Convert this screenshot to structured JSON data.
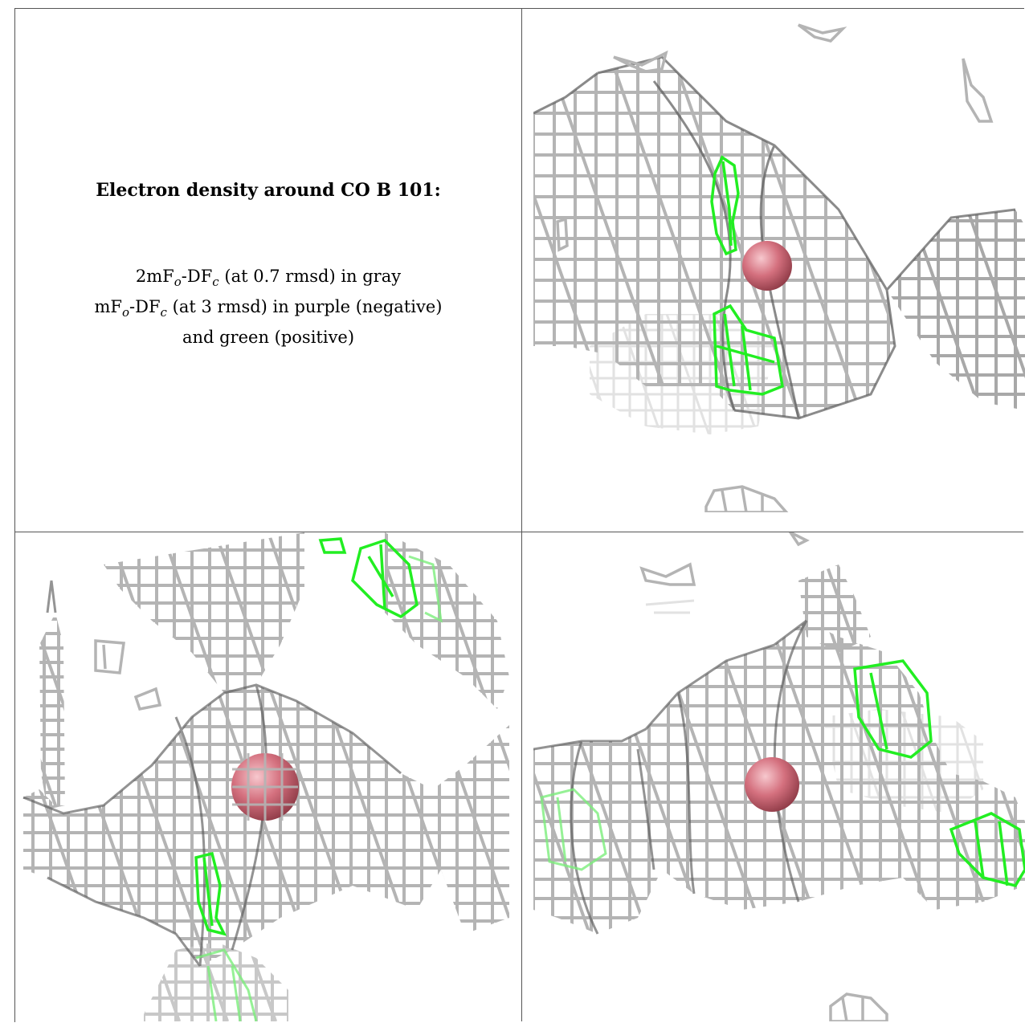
{
  "caption": {
    "heading": "Electron density around CO B 101:",
    "line1": {
      "a": "2mF",
      "s1": "o",
      "b": "-DF",
      "s2": "c",
      "rest": " (at 0.7 rmsd) in gray"
    },
    "line2": {
      "a": "mF",
      "s1": "o",
      "b": "-DF",
      "s2": "c",
      "rest": " (at 3 rmsd) in purple (negative)"
    },
    "line3": "and green (positive)"
  },
  "colors": {
    "mesh_gray": "#b4b4b4",
    "mesh_dark": "#5a5a5a",
    "mesh_light": "#e2e2e2",
    "positive_green": "#22ee22",
    "atom_red": "#d4707e",
    "background": "#ffffff"
  }
}
